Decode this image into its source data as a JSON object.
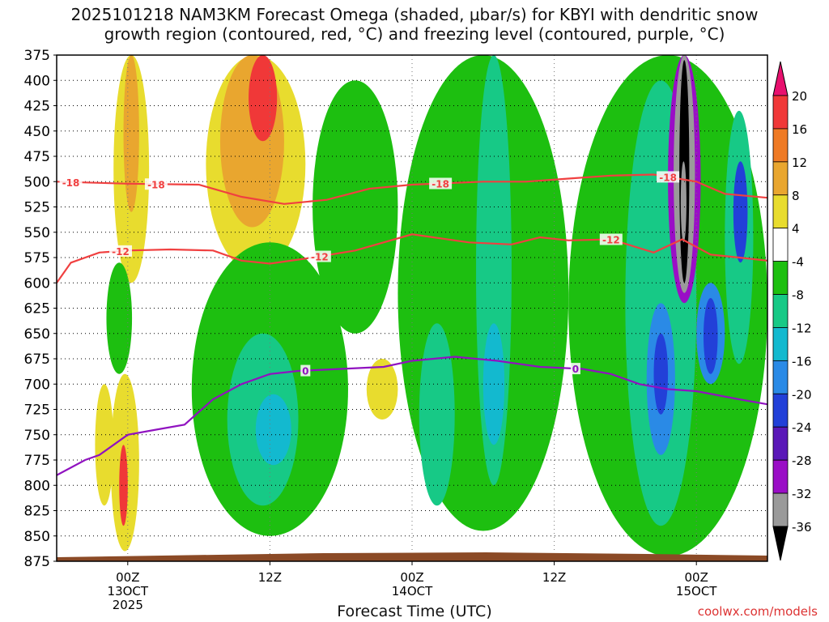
{
  "title_line1": "2025101218 NAM3KM Forecast Omega (shaded, μbar/s) for KBYI with dendritic snow",
  "title_line2": "growth region (contoured, red, °C) and freezing level (contoured, purple, °C)",
  "credit": "coolwx.com/models",
  "chart_data": {
    "type": "heatmap",
    "xlabel": "Forecast Time (UTC)",
    "x_range_hours": [
      -5,
      45
    ],
    "x_ticks": [
      {
        "hour": 0,
        "lines": [
          "00Z",
          "13OCT",
          "2025"
        ]
      },
      {
        "hour": 10,
        "lines": [
          "12Z"
        ]
      },
      {
        "hour": 20,
        "lines": [
          "00Z",
          "14OCT"
        ]
      },
      {
        "hour": 30,
        "lines": [
          "12Z"
        ]
      },
      {
        "hour": 40,
        "lines": [
          "00Z",
          "15OCT"
        ]
      }
    ],
    "ylabel": "",
    "y_range_mb": [
      875,
      375
    ],
    "y_ticks": [
      375,
      400,
      425,
      450,
      475,
      500,
      525,
      550,
      575,
      600,
      625,
      650,
      675,
      700,
      725,
      750,
      775,
      800,
      825,
      850,
      875
    ],
    "colorbar": {
      "labels": [
        "20",
        "16",
        "12",
        "8",
        "4",
        "-4",
        "-8",
        "-12",
        "-16",
        "-20",
        "-24",
        "-28",
        "-32",
        "-36"
      ],
      "colors": [
        "#e8106e",
        "#f03838",
        "#ef7a24",
        "#e9a62f",
        "#e8dc2e",
        "#ffffff",
        "#1dbf10",
        "#17c986",
        "#13b9cf",
        "#2a8ae6",
        "#2240d8",
        "#5a18b8",
        "#9a0ec6",
        "#9a9a9a",
        "#000000"
      ]
    },
    "omega_cells": [
      {
        "x": [
          -1,
          1.5
        ],
        "y": [
          375,
          600
        ],
        "v": 6
      },
      {
        "x": [
          -0.3,
          0.8
        ],
        "y": [
          375,
          530
        ],
        "v": 10
      },
      {
        "x": [
          5.5,
          12.5
        ],
        "y": [
          375,
          590
        ],
        "v": 6
      },
      {
        "x": [
          6.5,
          11
        ],
        "y": [
          375,
          545
        ],
        "v": 10
      },
      {
        "x": [
          8.5,
          10.5
        ],
        "y": [
          375,
          460
        ],
        "v": 17
      },
      {
        "x": [
          -2.3,
          -1
        ],
        "y": [
          700,
          820
        ],
        "v": 5
      },
      {
        "x": [
          -1.2,
          0.8
        ],
        "y": [
          690,
          865
        ],
        "v": 6
      },
      {
        "x": [
          -0.6,
          0
        ],
        "y": [
          760,
          840
        ],
        "v": 16
      },
      {
        "x": [
          16.8,
          19
        ],
        "y": [
          675,
          735
        ],
        "v": 5
      },
      {
        "x": [
          4.5,
          15.5
        ],
        "y": [
          560,
          850
        ],
        "v": -6
      },
      {
        "x": [
          -1.5,
          0.3
        ],
        "y": [
          580,
          690
        ],
        "v": -6
      },
      {
        "x": [
          7,
          12
        ],
        "y": [
          650,
          820
        ],
        "v": -11
      },
      {
        "x": [
          9,
          11.5
        ],
        "y": [
          710,
          780
        ],
        "v": -15
      },
      {
        "x": [
          13,
          19
        ],
        "y": [
          400,
          650
        ],
        "v": -6
      },
      {
        "x": [
          19,
          31
        ],
        "y": [
          375,
          845
        ],
        "v": -6
      },
      {
        "x": [
          20.5,
          23
        ],
        "y": [
          640,
          820
        ],
        "v": -11
      },
      {
        "x": [
          24.5,
          27
        ],
        "y": [
          375,
          800
        ],
        "v": -11
      },
      {
        "x": [
          25,
          26.5
        ],
        "y": [
          640,
          760
        ],
        "v": -15
      },
      {
        "x": [
          31,
          45
        ],
        "y": [
          375,
          870
        ],
        "v": -6
      },
      {
        "x": [
          35,
          40
        ],
        "y": [
          400,
          840
        ],
        "v": -11
      },
      {
        "x": [
          36.5,
          38.5
        ],
        "y": [
          620,
          770
        ],
        "v": -18
      },
      {
        "x": [
          37,
          38
        ],
        "y": [
          650,
          730
        ],
        "v": -22
      },
      {
        "x": [
          40,
          42
        ],
        "y": [
          600,
          700
        ],
        "v": -16
      },
      {
        "x": [
          40.5,
          41.5
        ],
        "y": [
          615,
          690
        ],
        "v": -22
      },
      {
        "x": [
          42,
          44
        ],
        "y": [
          430,
          680
        ],
        "v": -11
      },
      {
        "x": [
          42.6,
          43.6
        ],
        "y": [
          480,
          580
        ],
        "v": -20
      },
      {
        "x": [
          38,
          40.3
        ],
        "y": [
          375,
          620
        ],
        "v": -30
      },
      {
        "x": [
          38.4,
          39.9
        ],
        "y": [
          375,
          610
        ],
        "v": -33
      },
      {
        "x": [
          38.8,
          39.5
        ],
        "y": [
          380,
          600
        ],
        "v": -38
      },
      {
        "x": [
          38.9,
          39.3
        ],
        "y": [
          480,
          560
        ],
        "v": -34
      }
    ],
    "contours": [
      {
        "name": "-18",
        "color": "#f04040",
        "label": "-18",
        "label_hours": [
          -4,
          2,
          22,
          38
        ],
        "points": [
          [
            -5,
            500
          ],
          [
            0,
            502
          ],
          [
            5,
            503
          ],
          [
            8,
            515
          ],
          [
            11,
            522
          ],
          [
            14,
            518
          ],
          [
            17,
            507
          ],
          [
            20,
            503
          ],
          [
            25,
            500
          ],
          [
            28,
            500
          ],
          [
            31,
            497
          ],
          [
            34,
            494
          ],
          [
            37,
            493
          ],
          [
            40,
            500
          ],
          [
            42,
            512
          ],
          [
            45,
            516
          ]
        ]
      },
      {
        "name": "-12",
        "color": "#f04040",
        "label": "-12",
        "label_hours": [
          -0.5,
          13.5,
          34
        ],
        "points": [
          [
            -5,
            600
          ],
          [
            -4,
            580
          ],
          [
            -2,
            570
          ],
          [
            0,
            568
          ],
          [
            3,
            567
          ],
          [
            6,
            568
          ],
          [
            8,
            578
          ],
          [
            10,
            581
          ],
          [
            13,
            575
          ],
          [
            16,
            568
          ],
          [
            20,
            552
          ],
          [
            24,
            560
          ],
          [
            27,
            562
          ],
          [
            29,
            555
          ],
          [
            31,
            558
          ],
          [
            34,
            557
          ],
          [
            37,
            570
          ],
          [
            39,
            557
          ],
          [
            41,
            572
          ],
          [
            43,
            575
          ],
          [
            45,
            578
          ]
        ]
      },
      {
        "name": "0",
        "color": "#9012c0",
        "label": "0",
        "label_hours": [
          12.5,
          31.5
        ],
        "points": [
          [
            -5,
            790
          ],
          [
            -3,
            775
          ],
          [
            -2,
            770
          ],
          [
            0,
            750
          ],
          [
            2,
            745
          ],
          [
            4,
            740
          ],
          [
            6,
            715
          ],
          [
            8,
            700
          ],
          [
            10,
            690
          ],
          [
            12,
            687
          ],
          [
            15,
            685
          ],
          [
            18,
            683
          ],
          [
            20,
            677
          ],
          [
            23,
            673
          ],
          [
            26,
            677
          ],
          [
            29,
            683
          ],
          [
            32,
            685
          ],
          [
            34,
            690
          ],
          [
            36,
            700
          ],
          [
            38,
            705
          ],
          [
            40,
            707
          ],
          [
            43,
            715
          ],
          [
            45,
            720
          ]
        ]
      }
    ]
  }
}
